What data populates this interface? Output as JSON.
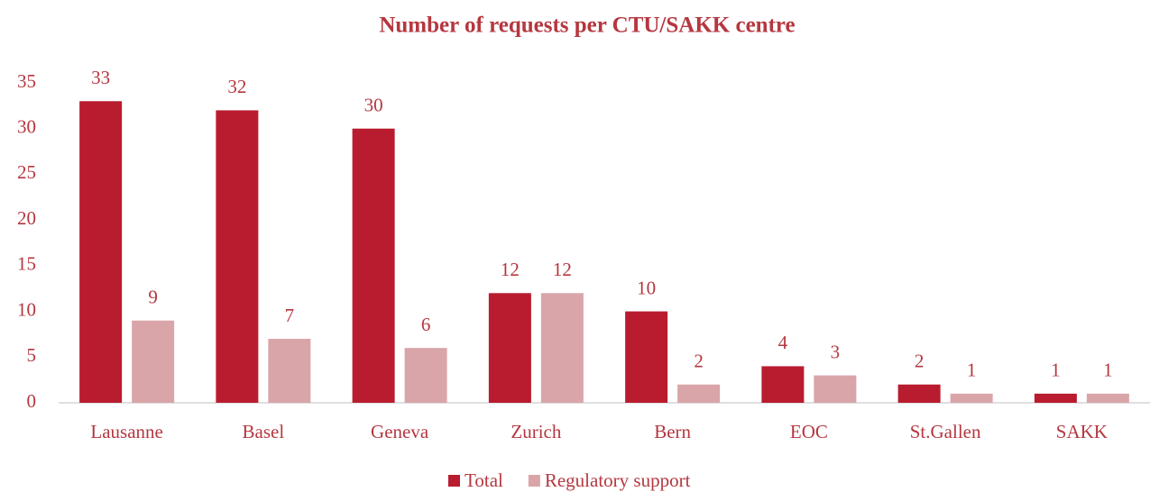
{
  "chart_data": {
    "type": "bar",
    "title": "Number of requests per CTU/SAKK centre",
    "categories": [
      "Lausanne",
      "Basel",
      "Geneva",
      "Zurich",
      "Bern",
      "EOC",
      "St.Gallen",
      "SAKK"
    ],
    "series": [
      {
        "name": "Total",
        "color": "#b91c2e",
        "values": [
          33,
          32,
          30,
          12,
          10,
          4,
          2,
          1
        ]
      },
      {
        "name": "Regulatory support",
        "color": "#d9a5a9",
        "values": [
          9,
          7,
          6,
          12,
          2,
          3,
          1,
          1
        ]
      }
    ],
    "ylim": [
      0,
      35
    ],
    "yticks": [
      0,
      5,
      10,
      15,
      20,
      25,
      30,
      35
    ],
    "grid": false,
    "legend": "bottom"
  }
}
